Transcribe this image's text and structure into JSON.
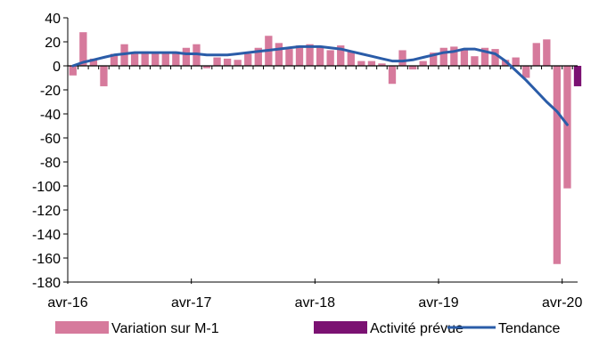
{
  "chart_data": {
    "type": "bar",
    "title": "",
    "xlabel": "",
    "ylabel": "",
    "ylim": [
      -180,
      40
    ],
    "yticks": [
      40,
      20,
      0,
      -20,
      -40,
      -60,
      -80,
      -100,
      -120,
      -140,
      -160,
      -180
    ],
    "x_tick_labels": [
      "avr-16",
      "avr-17",
      "avr-18",
      "avr-19",
      "avr-20"
    ],
    "x_tick_months": [
      0,
      12,
      24,
      36,
      48
    ],
    "grid": false,
    "legend_position": "bottom",
    "colors": {
      "variation": "#d67a9c",
      "prevue": "#7b1172",
      "tendance": "#2a5ca8"
    },
    "series": [
      {
        "name": "Variation sur M-1",
        "type": "bar",
        "values": [
          -8,
          28,
          6,
          -17,
          10,
          18,
          10,
          12,
          11,
          10,
          12,
          15,
          18,
          -2,
          7,
          6,
          5,
          10,
          15,
          25,
          19,
          14,
          17,
          18,
          16,
          13,
          17,
          12,
          4,
          4,
          2,
          -15,
          13,
          -3,
          4,
          11,
          15,
          16,
          13,
          8,
          15,
          14,
          5,
          7,
          -10,
          19,
          22,
          -165,
          -102
        ]
      },
      {
        "name": "Activité prévue",
        "type": "bar",
        "month": 49,
        "values": [
          -17
        ]
      },
      {
        "name": "Tendance",
        "type": "line",
        "values": [
          0,
          3,
          5,
          7,
          9,
          10,
          11,
          11,
          11,
          11,
          11,
          10,
          10,
          9,
          9,
          9,
          10,
          11,
          12,
          13,
          14,
          15,
          16,
          16,
          16,
          15,
          14,
          12,
          10,
          8,
          6,
          4,
          4,
          5,
          7,
          9,
          11,
          12,
          14,
          14,
          12,
          10,
          4,
          -4,
          -12,
          -21,
          -30,
          -38,
          -49
        ]
      }
    ]
  }
}
